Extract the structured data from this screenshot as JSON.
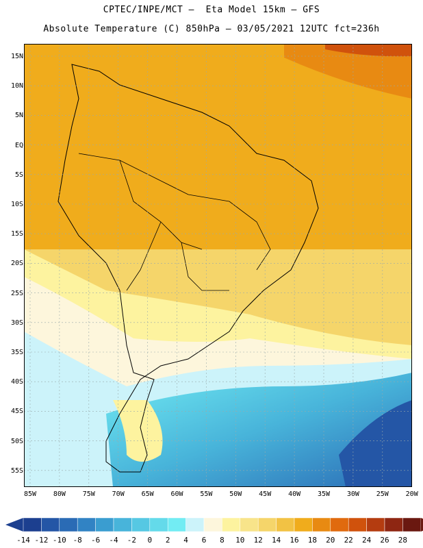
{
  "header": {
    "line1": "CPTEC/INPE/MCT –  Eta Model 15km – GFS",
    "line2": "Absolute Temperature (C) 850hPa – 03/05/2021 12UTC fct=236h"
  },
  "axes": {
    "latitudes": [
      "15N",
      "10N",
      "5N",
      "EQ",
      "5S",
      "10S",
      "15S",
      "20S",
      "25S",
      "30S",
      "35S",
      "40S",
      "45S",
      "50S",
      "55S"
    ],
    "longitudes": [
      "85W",
      "80W",
      "75W",
      "70W",
      "65W",
      "60W",
      "55W",
      "50W",
      "45W",
      "40W",
      "35W",
      "30W",
      "25W",
      "20W"
    ]
  },
  "legend": {
    "labels": [
      "-14",
      "-12",
      "-10",
      "-8",
      "-6",
      "-4",
      "-2",
      "0",
      "2",
      "4",
      "6",
      "8",
      "10",
      "12",
      "14",
      "16",
      "18",
      "20",
      "22",
      "24",
      "26",
      "28"
    ],
    "colors": [
      "#1c3f8f",
      "#2456a6",
      "#2a6bb5",
      "#3183c4",
      "#3a9dd0",
      "#48b4da",
      "#56c8e3",
      "#64daea",
      "#72ecf3",
      "#ccf3fa",
      "#fdf6dc",
      "#fdf39f",
      "#f8e48a",
      "#f5d56a",
      "#f2c244",
      "#f0ac1c",
      "#e88a12",
      "#e06a0e",
      "#d0520c",
      "#b43c10",
      "#8e2612",
      "#6a1810"
    ]
  }
}
